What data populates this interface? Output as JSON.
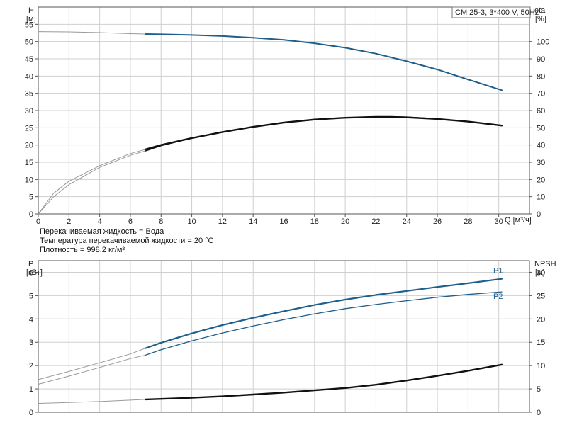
{
  "model_label": "CM 25-3, 3*400 V, 50Hz",
  "info": {
    "liquid": "Перекачиваемая жидкость = Вода",
    "temperature": "Температура перекачиваемой жидкости = 20 °C",
    "density": "Плотность = 998.2 кг/м³"
  },
  "colors": {
    "blue": "#1f5f8b",
    "black": "#111111",
    "grey": "#999999"
  },
  "chart_data": [
    {
      "type": "line",
      "x_axis": {
        "label": "Q [м³/ч]",
        "range": [
          0,
          32
        ],
        "ticks": [
          0,
          2,
          4,
          6,
          8,
          10,
          12,
          14,
          16,
          18,
          20,
          22,
          24,
          26,
          28,
          30
        ]
      },
      "y_left": {
        "label_top": "H",
        "label_unit": "[м]",
        "range": [
          0,
          60
        ],
        "ticks": [
          0,
          5,
          10,
          15,
          20,
          25,
          30,
          35,
          40,
          45,
          50,
          55
        ]
      },
      "y_right": {
        "label_top": "eta",
        "label_unit": "[%]",
        "range": [
          0,
          120
        ],
        "ticks": [
          0,
          10,
          20,
          30,
          40,
          50,
          60,
          70,
          80,
          90,
          100
        ]
      },
      "grid": true,
      "series": [
        {
          "axis": "left",
          "color": "blue",
          "width": 2,
          "dashed_range": [
            0,
            7
          ],
          "x": [
            0,
            2,
            4,
            6,
            7,
            8,
            10,
            12,
            14,
            16,
            18,
            20,
            22,
            24,
            26,
            28,
            30.2
          ],
          "y": [
            52.9,
            52.8,
            52.6,
            52.3,
            52.2,
            52.1,
            51.9,
            51.6,
            51.1,
            50.5,
            49.5,
            48.2,
            46.5,
            44.3,
            41.9,
            39.0,
            35.9
          ]
        },
        {
          "axis": "left",
          "color": "black",
          "width": 1.6,
          "dashed_range": [
            0,
            7
          ],
          "x": [
            0,
            1,
            2,
            4,
            6,
            7,
            8,
            10,
            12,
            14,
            16,
            18,
            20,
            22,
            23,
            24,
            26,
            28,
            30.2
          ],
          "y": [
            0,
            5,
            8.5,
            13.5,
            17,
            18.3,
            19.8,
            22,
            23.8,
            25.3,
            26.5,
            27.3,
            27.9,
            28.2,
            28.2,
            28.1,
            27.6,
            26.8,
            25.6
          ]
        },
        {
          "axis": "right",
          "color": "black",
          "width": 2.4,
          "dashed_range": [
            0,
            7
          ],
          "x": [
            0,
            1,
            2,
            4,
            6,
            7,
            8,
            10,
            12,
            14,
            16,
            18,
            20,
            22,
            23,
            24,
            26,
            28,
            30.2
          ],
          "y": [
            0,
            12,
            19,
            28,
            35,
            37.5,
            40,
            44,
            47.5,
            50.5,
            53,
            54.8,
            55.8,
            56.3,
            56.3,
            56,
            55.1,
            53.6,
            51.3
          ]
        }
      ]
    },
    {
      "type": "line",
      "x_axis": {
        "range": [
          0,
          32
        ],
        "ticks": []
      },
      "y_left": {
        "label_top": "P",
        "label_unit": "[кВт]",
        "range": [
          0,
          6.5
        ],
        "ticks": [
          0,
          1,
          2,
          3,
          4,
          5,
          6
        ]
      },
      "y_right": {
        "label_top": "NPSH",
        "label_unit": "[м]",
        "range": [
          0,
          32.5
        ],
        "ticks": [
          0,
          5,
          10,
          15,
          20,
          25,
          30
        ]
      },
      "grid": true,
      "series": [
        {
          "name": "P1",
          "axis": "left",
          "color": "blue",
          "width": 2.2,
          "dashed_range": [
            0,
            7
          ],
          "x": [
            0,
            2,
            4,
            6,
            7,
            8,
            10,
            12,
            14,
            16,
            18,
            20,
            22,
            24,
            26,
            28,
            30.2
          ],
          "y": [
            1.4,
            1.75,
            2.12,
            2.5,
            2.75,
            2.98,
            3.38,
            3.74,
            4.05,
            4.33,
            4.6,
            4.83,
            5.03,
            5.2,
            5.37,
            5.53,
            5.72
          ]
        },
        {
          "name": "P2",
          "axis": "left",
          "color": "blue",
          "width": 1.3,
          "dashed_range": [
            0,
            7
          ],
          "x": [
            0,
            2,
            4,
            6,
            7,
            8,
            10,
            12,
            14,
            16,
            18,
            20,
            22,
            24,
            26,
            28,
            30.2
          ],
          "y": [
            1.2,
            1.55,
            1.92,
            2.3,
            2.45,
            2.68,
            3.06,
            3.4,
            3.7,
            3.97,
            4.22,
            4.44,
            4.62,
            4.78,
            4.93,
            5.05,
            5.16
          ]
        },
        {
          "axis": "right",
          "color": "black",
          "width": 2.4,
          "dashed_range": [
            0,
            7
          ],
          "x": [
            0,
            2,
            4,
            6,
            7,
            8,
            10,
            12,
            14,
            16,
            18,
            20,
            22,
            24,
            26,
            28,
            30.2
          ],
          "y": [
            1.9,
            2.1,
            2.3,
            2.6,
            2.75,
            2.85,
            3.1,
            3.4,
            3.8,
            4.2,
            4.7,
            5.2,
            5.9,
            6.8,
            7.8,
            8.9,
            10.2
          ]
        }
      ]
    }
  ]
}
